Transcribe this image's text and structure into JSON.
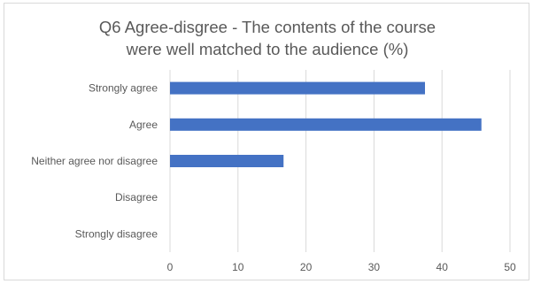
{
  "chart_data": {
    "type": "bar",
    "orientation": "horizontal",
    "title_line1": "Q6 Agree-disgree - The contents of the course",
    "title_line2": "were well matched to the audience (%)",
    "categories": [
      "Strongly agree",
      "Agree",
      "Neither agree nor disagree",
      "Disagree",
      "Strongly disagree"
    ],
    "values": [
      37.5,
      45.8,
      16.7,
      0,
      0
    ],
    "xlim": [
      0,
      50
    ],
    "xticks": [
      "0",
      "10",
      "20",
      "30",
      "40",
      "50"
    ],
    "grid": true,
    "bar_color": "#4472c4",
    "grid_color": "#d9d9d9",
    "xlabel": "",
    "ylabel": ""
  }
}
